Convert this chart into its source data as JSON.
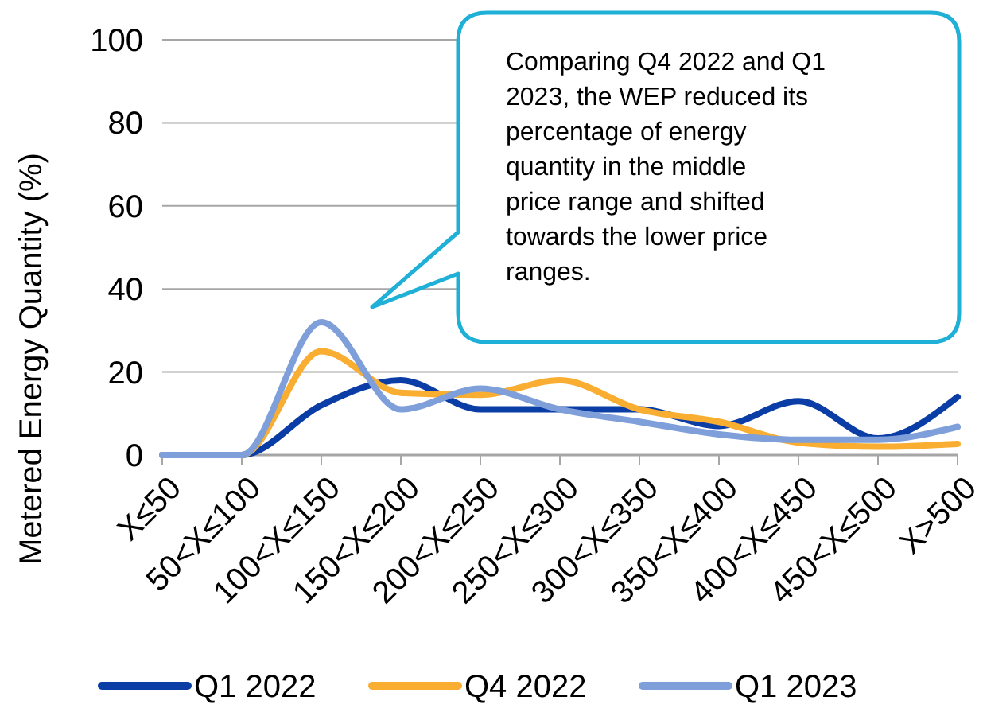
{
  "chart_data": {
    "type": "line",
    "ylabel": "Metered Energy Quantity (%)",
    "categories": [
      "X≤50",
      "50<X≤100",
      "100<X≤150",
      "150<X≤200",
      "200<X≤250",
      "250<X≤300",
      "300<X≤350",
      "350<X≤400",
      "400<X≤450",
      "450<X≤500",
      "X>500"
    ],
    "series": [
      {
        "name": "Q1 2022",
        "color": "#0a3ea6",
        "values": [
          0,
          0,
          12,
          18,
          11,
          11,
          11,
          7,
          13,
          4,
          14
        ]
      },
      {
        "name": "Q4 2022",
        "color": "#f9ae32",
        "values": [
          0,
          0,
          25,
          15,
          14.5,
          18,
          11,
          8,
          3,
          2,
          2.7
        ]
      },
      {
        "name": "Q1 2023",
        "color": "#7e9fd9",
        "values": [
          0,
          0,
          32,
          11,
          16,
          11,
          8,
          5,
          3.7,
          3.7,
          6.8
        ]
      }
    ],
    "ylim": [
      0,
      100
    ],
    "yticks": [
      0,
      20,
      40,
      60,
      80,
      100
    ],
    "grid": "y",
    "legend": "bottom",
    "marker": "none",
    "line_style": "solid",
    "annotations": [
      "Comparing Q4 2022 and Q1 2023, the WEP reduced its percentage of energy quantity in the middle price range and shifted towards the lower price ranges."
    ]
  }
}
